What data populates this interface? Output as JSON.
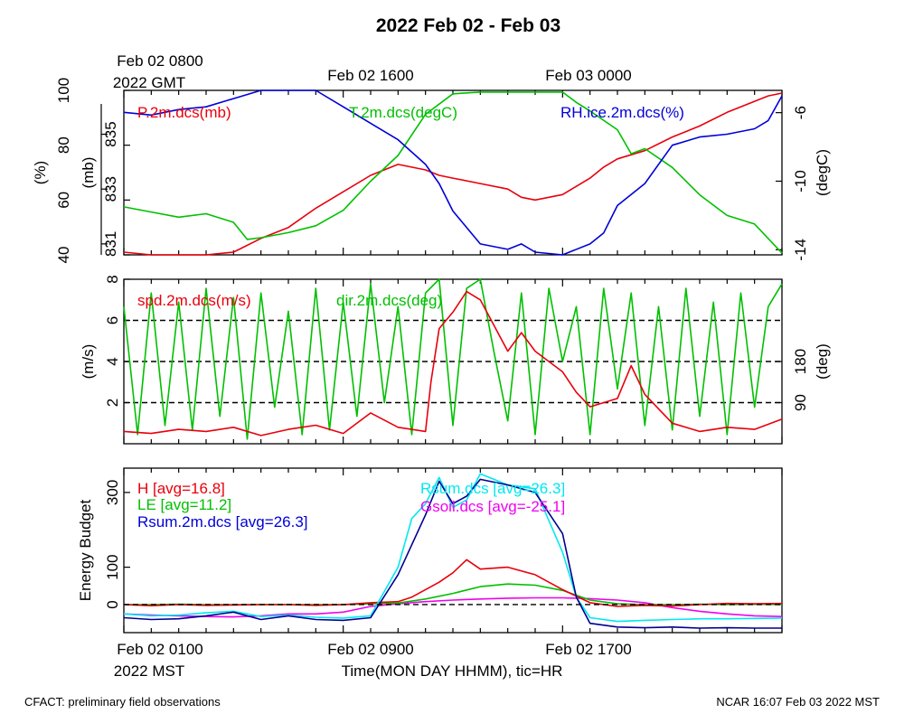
{
  "title": "2022 Feb 02 - Feb 03",
  "top_time_labels": [
    {
      "line1": "Feb 02 0800",
      "line2": "2022 GMT"
    },
    {
      "line1": "Feb 02 1600",
      "line2": ""
    },
    {
      "line1": "Feb 03 0000",
      "line2": ""
    }
  ],
  "bottom_time_labels": [
    {
      "line1": "Feb 02 0100",
      "line2": "2022 MST"
    },
    {
      "line1": "Feb 02 0900",
      "line2": ""
    },
    {
      "line1": "Feb 02 1700",
      "line2": ""
    }
  ],
  "xlabel": "Time(MON DAY HHMM), tic=HR",
  "footer_left": "CFACT: preliminary field observations",
  "footer_right": "NCAR 16:07 Feb 03 2022 MST",
  "colors": {
    "red": "#e8000b",
    "green": "#00c000",
    "blue": "#0000d8",
    "cyan": "#00e8f0",
    "magenta": "#f000f0",
    "navy": "#000090"
  },
  "chart_data": [
    {
      "type": "line",
      "x_hours_mst": [
        1,
        25
      ],
      "series": [
        {
          "name": "P.2m.dcs(mb)",
          "color": "#e8000b",
          "axis": "mb",
          "ylim": [
            830.6,
            836.6
          ],
          "x": [
            1,
            2,
            3,
            4,
            5,
            6,
            7,
            8,
            9,
            10,
            11,
            12,
            12.5,
            13,
            14,
            15,
            15.5,
            16,
            17,
            18,
            18.5,
            19,
            20,
            21,
            22,
            23,
            24,
            24.5,
            25
          ],
          "values": [
            830.7,
            830.6,
            830.5,
            830.5,
            830.7,
            831.2,
            831.6,
            832.3,
            832.9,
            833.5,
            833.9,
            833.7,
            833.5,
            833.4,
            833.2,
            833.0,
            832.7,
            832.6,
            832.8,
            833.4,
            833.8,
            834.1,
            834.4,
            834.9,
            835.3,
            835.8,
            836.2,
            836.4,
            836.5
          ]
        },
        {
          "name": "T.2m.dcs(degC)",
          "color": "#00c000",
          "axis": "degC",
          "ylim": [
            -14.3,
            -4.7
          ],
          "x": [
            1,
            2,
            3,
            4,
            5,
            5.5,
            6,
            7,
            8,
            9,
            10,
            11,
            12,
            13,
            14,
            15,
            16,
            17,
            17.5,
            18,
            19,
            19.5,
            20,
            21,
            22,
            23,
            24,
            25
          ],
          "values": [
            -11.5,
            -11.8,
            -12.1,
            -11.9,
            -12.4,
            -13.4,
            -13.3,
            -13.0,
            -12.6,
            -11.7,
            -10.0,
            -8.5,
            -6.1,
            -4.9,
            -4.8,
            -4.8,
            -4.8,
            -4.8,
            -5.4,
            -5.9,
            -7.0,
            -8.4,
            -8.1,
            -9.2,
            -10.8,
            -12.0,
            -12.5,
            -14.2
          ]
        },
        {
          "name": "RH.ice.2m.dcs(%)",
          "color": "#0000d8",
          "axis": "%",
          "ylim": [
            40,
            100
          ],
          "x": [
            1,
            2,
            3,
            4,
            5,
            6,
            7,
            8,
            9,
            10,
            11,
            12,
            12.5,
            13,
            14,
            15,
            15.5,
            16,
            17,
            18,
            18.5,
            19,
            20,
            21,
            22,
            23,
            24,
            24.5,
            25
          ],
          "values": [
            92,
            91,
            93,
            94,
            97,
            100,
            100,
            100,
            94,
            88,
            82,
            73,
            66,
            56,
            44,
            42,
            44,
            41,
            40,
            44,
            48,
            58,
            66,
            80,
            83,
            84,
            86,
            89,
            98
          ]
        }
      ],
      "left_axes": [
        {
          "label": "(%)",
          "ticks": [
            40,
            60,
            80,
            100
          ]
        },
        {
          "label": "(mb)",
          "ticks": [
            831,
            833,
            835
          ]
        }
      ],
      "right_axis": {
        "label": "(degC)",
        "ticks": [
          -14,
          -10,
          -6
        ]
      }
    },
    {
      "type": "line",
      "x_hours_mst": [
        1,
        25
      ],
      "series": [
        {
          "name": "spd.2m.dcs(m/s)",
          "color": "#e8000b",
          "ylim": [
            0,
            8
          ],
          "x": [
            1,
            2,
            3,
            4,
            5,
            6,
            7,
            8,
            9,
            10,
            11,
            12,
            12.2,
            12.5,
            13,
            13.5,
            14,
            15,
            15.5,
            16,
            17,
            17.5,
            18,
            19,
            19.5,
            20,
            21,
            22,
            23,
            24,
            25
          ],
          "values": [
            0.6,
            0.5,
            0.7,
            0.6,
            0.8,
            0.4,
            0.7,
            0.9,
            0.5,
            1.5,
            0.8,
            0.6,
            3.0,
            5.6,
            6.4,
            7.4,
            7.0,
            4.5,
            5.4,
            4.5,
            3.5,
            2.5,
            1.8,
            2.2,
            3.8,
            2.4,
            1.0,
            0.6,
            0.8,
            0.7,
            1.2
          ]
        },
        {
          "name": "dir.2m.dcs(deg)",
          "color": "#00c000",
          "ylim": [
            0,
            360
          ],
          "ticks": [
            90,
            180
          ],
          "label": "(deg)",
          "x": [
            1,
            1.5,
            2,
            2.5,
            3,
            3.5,
            4,
            4.5,
            5,
            5.5,
            6,
            6.5,
            7,
            7.5,
            8,
            8.5,
            9,
            9.5,
            10,
            10.5,
            11,
            11.5,
            12,
            12.5,
            13,
            13.5,
            14,
            14.5,
            15,
            15.5,
            16,
            16.5,
            17,
            17.5,
            18,
            18.5,
            19,
            19.5,
            20,
            20.5,
            21,
            21.5,
            22,
            22.5,
            23,
            23.5,
            24,
            24.5,
            25
          ],
          "values": [
            300,
            20,
            330,
            40,
            310,
            30,
            340,
            60,
            320,
            10,
            330,
            80,
            290,
            20,
            340,
            30,
            310,
            60,
            350,
            90,
            300,
            20,
            330,
            360,
            40,
            340,
            360,
            200,
            50,
            330,
            20,
            340,
            180,
            300,
            20,
            340,
            120,
            330,
            40,
            300,
            30,
            340,
            60,
            310,
            20,
            330,
            80,
            300,
            350
          ]
        }
      ],
      "left_axis": {
        "label": "(m/s)",
        "ticks": [
          2,
          4,
          6,
          8
        ]
      },
      "reference_lines": [
        2,
        4,
        6
      ]
    },
    {
      "type": "line",
      "x_hours_mst": [
        1,
        25
      ],
      "ylim": [
        -75,
        365
      ],
      "ylabel": "Energy Budget",
      "ticks": [
        0,
        100,
        300
      ],
      "reference_lines": [
        0
      ],
      "series": [
        {
          "name": "H [avg=16.8]",
          "color": "#e8000b",
          "x": [
            1,
            2,
            3,
            4,
            5,
            6,
            7,
            8,
            9,
            10,
            11,
            11.5,
            12,
            12.5,
            13,
            13.5,
            14,
            15,
            16,
            17,
            18,
            19,
            20,
            21,
            22,
            23,
            24,
            25
          ],
          "values": [
            0,
            -3,
            0,
            -2,
            -1,
            0,
            0,
            -2,
            0,
            5,
            8,
            20,
            40,
            60,
            85,
            120,
            95,
            100,
            80,
            40,
            5,
            -5,
            -2,
            -4,
            0,
            3,
            2,
            3
          ]
        },
        {
          "name": "LE [avg=11.2]",
          "color": "#00c000",
          "x": [
            1,
            2,
            3,
            4,
            5,
            6,
            7,
            8,
            9,
            10,
            11,
            12,
            13,
            14,
            15,
            16,
            17,
            18,
            19,
            20,
            21,
            22,
            23,
            24,
            25
          ],
          "values": [
            0,
            0,
            1,
            0,
            0,
            0,
            0,
            0,
            0,
            2,
            4,
            15,
            30,
            48,
            55,
            52,
            38,
            12,
            2,
            0,
            0,
            1,
            0,
            1,
            0
          ]
        },
        {
          "name": "Rsum.2m.dcs [avg=26.3]",
          "color": "#000090",
          "x": [
            1,
            2,
            3,
            4,
            5,
            6,
            7,
            8,
            9,
            10,
            11,
            12,
            12.5,
            13,
            13.5,
            14,
            15,
            16,
            17,
            17.5,
            18,
            19,
            20,
            21,
            22,
            23,
            24,
            25
          ],
          "values": [
            -35,
            -40,
            -38,
            -30,
            -20,
            -40,
            -30,
            -40,
            -42,
            -35,
            80,
            240,
            330,
            270,
            290,
            335,
            320,
            300,
            190,
            20,
            -50,
            -60,
            -62,
            -60,
            -63,
            -62,
            -63,
            -63
          ]
        },
        {
          "name": "Rsum.dcs [avg=26.3]",
          "color": "#00e8f0",
          "x": [
            1,
            2,
            3,
            4,
            5,
            6,
            7,
            8,
            9,
            10,
            11,
            11.5,
            12,
            12.5,
            13,
            13.5,
            14,
            15,
            16,
            17,
            17.5,
            18,
            19,
            20,
            21,
            22,
            23,
            24,
            25
          ],
          "values": [
            -25,
            -30,
            -28,
            -22,
            -18,
            -32,
            -28,
            -34,
            -36,
            -30,
            100,
            230,
            270,
            340,
            260,
            280,
            350,
            320,
            310,
            140,
            20,
            -35,
            -45,
            -42,
            -40,
            -38,
            -38,
            -37,
            -36
          ]
        },
        {
          "name": "Gsoil.dcs [avg=-25.1]",
          "color": "#f000f0",
          "x": [
            1,
            2,
            3,
            4,
            5,
            6,
            7,
            8,
            9,
            10,
            11,
            12,
            13,
            14,
            15,
            16,
            17,
            18,
            19,
            20,
            21,
            22,
            23,
            24,
            25
          ],
          "values": [
            -25,
            -28,
            -30,
            -32,
            -33,
            -30,
            -25,
            -25,
            -20,
            -5,
            2,
            8,
            12,
            15,
            17,
            18,
            18,
            16,
            12,
            5,
            -8,
            -18,
            -25,
            -30,
            -32
          ]
        }
      ]
    }
  ]
}
